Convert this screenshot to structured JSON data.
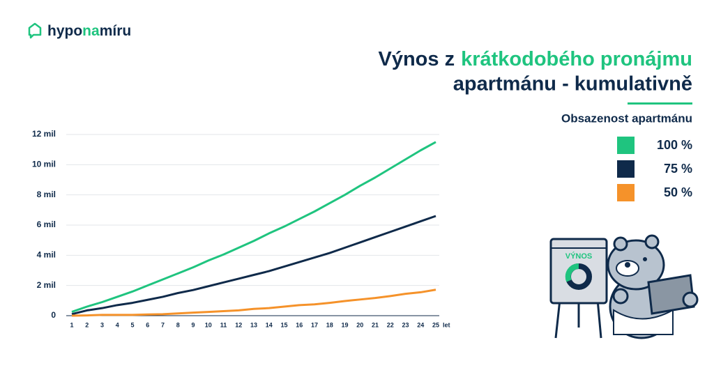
{
  "brand": [
    "hypo",
    "na",
    "míru"
  ],
  "illustration_label": "VÝNOS",
  "chart_data": {
    "type": "line",
    "title": [
      "Výnos z",
      "krátkodobého pronájmu",
      "apartmánu - kumulativně"
    ],
    "legend_title": "Obsazenost apartmánu",
    "legend": "right",
    "x_label": "let",
    "x": [
      1,
      2,
      3,
      4,
      5,
      6,
      7,
      8,
      9,
      10,
      11,
      12,
      13,
      14,
      15,
      16,
      17,
      18,
      19,
      20,
      21,
      22,
      23,
      24,
      25
    ],
    "xlim": [
      1,
      25
    ],
    "xticks": [
      1,
      2,
      3,
      4,
      5,
      6,
      7,
      8,
      9,
      10,
      11,
      12,
      13,
      14,
      15,
      16,
      17,
      18,
      19,
      20,
      21,
      22,
      23,
      24,
      25
    ],
    "ylim": [
      0,
      12
    ],
    "yticks": [
      0,
      {
        "value": 2,
        "label": "2 mil"
      },
      {
        "value": 4,
        "label": "4 mil"
      },
      {
        "value": 6,
        "label": "6 mil"
      },
      {
        "value": 8,
        "label": "8 mil"
      },
      {
        "value": 10,
        "label": "10 mil"
      },
      {
        "value": 12,
        "label": "12 mil"
      }
    ],
    "grid": true,
    "series": [
      {
        "name": "100 %",
        "color": "#1fc47f",
        "values": [
          0.25,
          0.6,
          0.9,
          1.25,
          1.6,
          2.0,
          2.4,
          2.8,
          3.2,
          3.65,
          4.05,
          4.5,
          4.95,
          5.45,
          5.9,
          6.4,
          6.9,
          7.45,
          8.0,
          8.6,
          9.15,
          9.75,
          10.35,
          10.95,
          11.5
        ]
      },
      {
        "name": "75 %",
        "color": "#0f2a4a",
        "values": [
          0.1,
          0.35,
          0.5,
          0.7,
          0.85,
          1.05,
          1.25,
          1.5,
          1.7,
          1.95,
          2.2,
          2.45,
          2.7,
          2.95,
          3.25,
          3.55,
          3.85,
          4.15,
          4.5,
          4.85,
          5.2,
          5.55,
          5.9,
          6.25,
          6.6
        ]
      },
      {
        "name": "50 %",
        "color": "#f5922a",
        "values": [
          0.0,
          0.02,
          0.05,
          0.05,
          0.05,
          0.08,
          0.1,
          0.15,
          0.2,
          0.25,
          0.3,
          0.35,
          0.45,
          0.5,
          0.6,
          0.7,
          0.75,
          0.85,
          0.97,
          1.07,
          1.17,
          1.3,
          1.45,
          1.55,
          1.72
        ]
      }
    ]
  }
}
